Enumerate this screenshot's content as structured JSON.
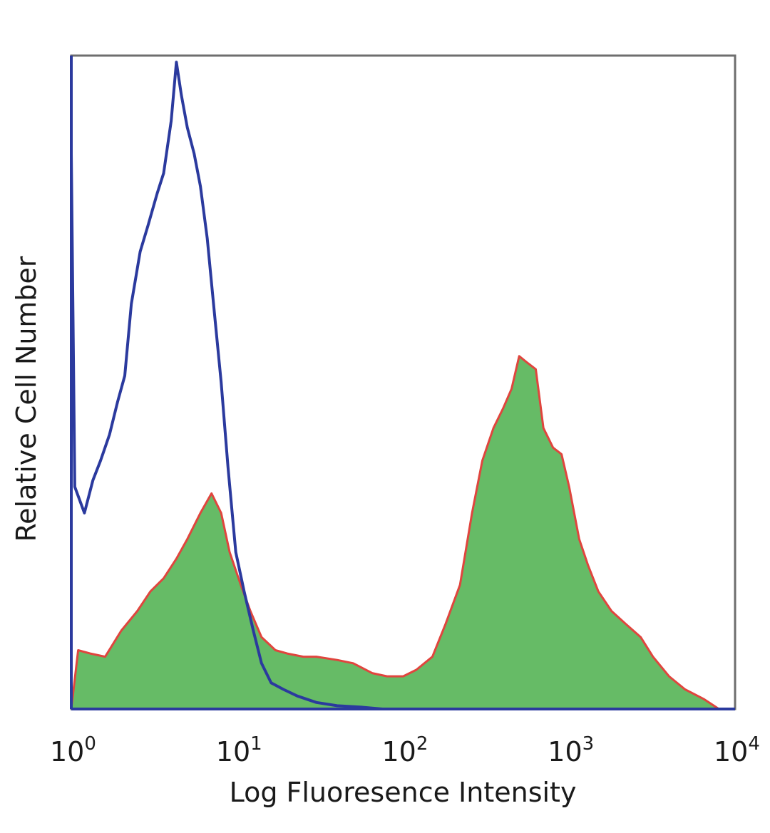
{
  "chart_data": {
    "type": "area",
    "title": "",
    "xlabel": "Log Fluoresence Intensity",
    "ylabel": "Relative Cell Number",
    "xscale": "log",
    "xlim": [
      1,
      10000
    ],
    "ylim": [
      0,
      100
    ],
    "grid": false,
    "legend": "none",
    "x_tick_labels": [
      {
        "base": "10",
        "exp": "0"
      },
      {
        "base": "10",
        "exp": "1"
      },
      {
        "base": "10",
        "exp": "2"
      },
      {
        "base": "10",
        "exp": "3"
      },
      {
        "base": "10",
        "exp": "4"
      }
    ],
    "series": [
      {
        "style": "outline",
        "color": "#2b3a9e",
        "x": [
          1.0,
          1.05,
          1.2,
          1.35,
          1.5,
          1.7,
          1.9,
          2.1,
          2.3,
          2.6,
          2.9,
          3.3,
          3.6,
          4.0,
          4.3,
          4.6,
          5.0,
          5.5,
          6.0,
          6.6,
          7.2,
          8.0,
          8.8,
          9.8,
          11,
          12.5,
          14,
          16,
          19,
          23,
          30,
          40,
          55,
          75
        ],
        "y": [
          85,
          34,
          30,
          35,
          38,
          42,
          47,
          51,
          62,
          70,
          74,
          79,
          82,
          90,
          99,
          94,
          89,
          85,
          80,
          72,
          62,
          50,
          37,
          24,
          18,
          12,
          7,
          4,
          3,
          2,
          1,
          0.5,
          0.3,
          0
        ]
      },
      {
        "style": "filled",
        "color": "#2e9e3a",
        "fill": "#66bb66",
        "outline": "#e0453e",
        "x": [
          1.0,
          1.1,
          1.3,
          1.6,
          2.0,
          2.5,
          3.0,
          3.6,
          4.3,
          5.0,
          6.0,
          7.0,
          8.0,
          9.0,
          10.5,
          12,
          14,
          17,
          20,
          25,
          30,
          40,
          50,
          65,
          80,
          100,
          120,
          150,
          180,
          220,
          260,
          300,
          350,
          400,
          450,
          500,
          560,
          630,
          700,
          800,
          900,
          1000,
          1150,
          1300,
          1500,
          1800,
          2200,
          2700,
          3200,
          4000,
          5000,
          6500,
          8000
        ],
        "y": [
          0,
          9,
          8.5,
          8,
          12,
          15,
          18,
          20,
          23,
          26,
          30,
          33,
          30,
          24,
          19,
          15,
          11,
          9,
          8.5,
          8,
          8,
          7.5,
          7,
          5.5,
          5,
          5,
          6,
          8,
          13,
          19,
          30,
          38,
          43,
          46,
          49,
          54,
          53,
          52,
          43,
          40,
          39,
          34,
          26,
          22,
          18,
          15,
          13,
          11,
          8,
          5,
          3,
          1.5,
          0
        ]
      }
    ]
  }
}
